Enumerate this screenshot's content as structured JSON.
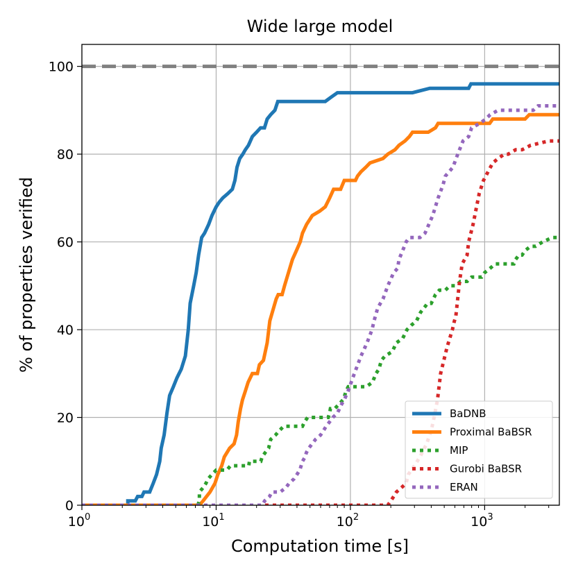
{
  "chart_data": {
    "type": "line",
    "title": "Wide large model",
    "xlabel": "Computation time [s]",
    "ylabel": "% of properties verified",
    "xscale": "log",
    "xlim": [
      1,
      3600
    ],
    "ylim": [
      0,
      105
    ],
    "grid": true,
    "legend_position": "lower-right",
    "x_ticks": [
      {
        "value": 1,
        "base": "10",
        "exp": "0"
      },
      {
        "value": 10,
        "base": "10",
        "exp": "1"
      },
      {
        "value": 100,
        "base": "10",
        "exp": "2"
      },
      {
        "value": 1000,
        "base": "10",
        "exp": "3"
      }
    ],
    "y_ticks": [
      {
        "value": 0,
        "label": "0"
      },
      {
        "value": 20,
        "label": "20"
      },
      {
        "value": 40,
        "label": "40"
      },
      {
        "value": 60,
        "label": "60"
      },
      {
        "value": 80,
        "label": "80"
      },
      {
        "value": 100,
        "label": "100"
      }
    ],
    "reference_line": {
      "y": 100,
      "color": "#808080",
      "style": "dashed"
    },
    "series": [
      {
        "name": "BaDNB",
        "color": "#1f77b4",
        "style": "solid",
        "points": [
          [
            1,
            0
          ],
          [
            2.2,
            0
          ],
          [
            2.2,
            1
          ],
          [
            2.5,
            1
          ],
          [
            2.6,
            2
          ],
          [
            2.8,
            2
          ],
          [
            2.9,
            3
          ],
          [
            3.2,
            3
          ],
          [
            3.4,
            5
          ],
          [
            3.6,
            7
          ],
          [
            3.8,
            10
          ],
          [
            3.9,
            13
          ],
          [
            4.1,
            16
          ],
          [
            4.3,
            21
          ],
          [
            4.5,
            25
          ],
          [
            4.8,
            27
          ],
          [
            5.1,
            29
          ],
          [
            5.5,
            31
          ],
          [
            5.9,
            34
          ],
          [
            6.2,
            40
          ],
          [
            6.4,
            46
          ],
          [
            6.8,
            50
          ],
          [
            7.1,
            53
          ],
          [
            7.4,
            57
          ],
          [
            7.8,
            61
          ],
          [
            8.2,
            62
          ],
          [
            8.8,
            64
          ],
          [
            9.3,
            66
          ],
          [
            10,
            68
          ],
          [
            10.5,
            69
          ],
          [
            11.2,
            70
          ],
          [
            12.2,
            71
          ],
          [
            13.2,
            72
          ],
          [
            13.8,
            74
          ],
          [
            14.3,
            77
          ],
          [
            15,
            79
          ],
          [
            15.8,
            80
          ],
          [
            16.5,
            81
          ],
          [
            17.4,
            82
          ],
          [
            18.6,
            84
          ],
          [
            20,
            85
          ],
          [
            21.4,
            86
          ],
          [
            22.9,
            86
          ],
          [
            24,
            88
          ],
          [
            25.5,
            89
          ],
          [
            27.4,
            90
          ],
          [
            28.8,
            92
          ],
          [
            65,
            92
          ],
          [
            72,
            93
          ],
          [
            80,
            94
          ],
          [
            290,
            94
          ],
          [
            390,
            95
          ],
          [
            760,
            95
          ],
          [
            790,
            96
          ],
          [
            3600,
            96
          ]
        ]
      },
      {
        "name": "Proximal BaBSR",
        "color": "#ff7f0e",
        "style": "solid",
        "points": [
          [
            1,
            0
          ],
          [
            7.5,
            0
          ],
          [
            8,
            1
          ],
          [
            9,
            3
          ],
          [
            9.8,
            5
          ],
          [
            10.3,
            7
          ],
          [
            11,
            9
          ],
          [
            11.5,
            11
          ],
          [
            12.6,
            13
          ],
          [
            13.6,
            14
          ],
          [
            14.2,
            16
          ],
          [
            14.6,
            19
          ],
          [
            15.2,
            22
          ],
          [
            15.7,
            24
          ],
          [
            16.5,
            26
          ],
          [
            17.3,
            28
          ],
          [
            18.6,
            30
          ],
          [
            20.3,
            30
          ],
          [
            21,
            32
          ],
          [
            22.5,
            33
          ],
          [
            24,
            37
          ],
          [
            25.1,
            42
          ],
          [
            26.8,
            45
          ],
          [
            28,
            47
          ],
          [
            29,
            48
          ],
          [
            31,
            48
          ],
          [
            32.3,
            50
          ],
          [
            34.6,
            53
          ],
          [
            37,
            56
          ],
          [
            39.6,
            58
          ],
          [
            42.3,
            60
          ],
          [
            44,
            62
          ],
          [
            47.2,
            64
          ],
          [
            52,
            66
          ],
          [
            59,
            67
          ],
          [
            65,
            68
          ],
          [
            70,
            70
          ],
          [
            75,
            72
          ],
          [
            84.5,
            72
          ],
          [
            90,
            74
          ],
          [
            109,
            74
          ],
          [
            113,
            75
          ],
          [
            120,
            76
          ],
          [
            130,
            77
          ],
          [
            140,
            78
          ],
          [
            175,
            79
          ],
          [
            190,
            80
          ],
          [
            215,
            81
          ],
          [
            230,
            82
          ],
          [
            255,
            83
          ],
          [
            275,
            84
          ],
          [
            290,
            85
          ],
          [
            380,
            85
          ],
          [
            430,
            86
          ],
          [
            450,
            87
          ],
          [
            1090,
            87
          ],
          [
            1150,
            88
          ],
          [
            2000,
            88
          ],
          [
            2150,
            89
          ],
          [
            3600,
            89
          ]
        ]
      },
      {
        "name": "MIP",
        "color": "#2ca02c",
        "style": "dotted",
        "points": [
          [
            7.3,
            0
          ],
          [
            7.5,
            1
          ],
          [
            7.5,
            3
          ],
          [
            8,
            4
          ],
          [
            8.4,
            5
          ],
          [
            8.7,
            6
          ],
          [
            9.3,
            7
          ],
          [
            10,
            8
          ],
          [
            12,
            8
          ],
          [
            12.8,
            9
          ],
          [
            17.5,
            9
          ],
          [
            17.7,
            10
          ],
          [
            21.5,
            10
          ],
          [
            22,
            11
          ],
          [
            23.2,
            12
          ],
          [
            24.6,
            13
          ],
          [
            25.5,
            15
          ],
          [
            27.7,
            16
          ],
          [
            29.6,
            17
          ],
          [
            31.8,
            18
          ],
          [
            44,
            18
          ],
          [
            45.5,
            19
          ],
          [
            48,
            20
          ],
          [
            68.3,
            20
          ],
          [
            70,
            21
          ],
          [
            71,
            22
          ],
          [
            76.4,
            22
          ],
          [
            82.2,
            23
          ],
          [
            88,
            24
          ],
          [
            90.7,
            25
          ],
          [
            92.8,
            26
          ],
          [
            96.3,
            27
          ],
          [
            131,
            27
          ],
          [
            146,
            28
          ],
          [
            155,
            30
          ],
          [
            163,
            31
          ],
          [
            170,
            33
          ],
          [
            181,
            34
          ],
          [
            205,
            35
          ],
          [
            220,
            37
          ],
          [
            245,
            38
          ],
          [
            264,
            40
          ],
          [
            284,
            41
          ],
          [
            311,
            42
          ],
          [
            334,
            44
          ],
          [
            376,
            46
          ],
          [
            400,
            46
          ],
          [
            430,
            48
          ],
          [
            460,
            49
          ],
          [
            510,
            49
          ],
          [
            550,
            50
          ],
          [
            610,
            50
          ],
          [
            660,
            51
          ],
          [
            740,
            51
          ],
          [
            800,
            52
          ],
          [
            950,
            52
          ],
          [
            1000,
            53
          ],
          [
            1100,
            54
          ],
          [
            1200,
            55
          ],
          [
            1650,
            55
          ],
          [
            1700,
            56
          ],
          [
            1800,
            57
          ],
          [
            1900,
            57
          ],
          [
            2000,
            58
          ],
          [
            2200,
            59
          ],
          [
            2400,
            59
          ],
          [
            2700,
            60
          ],
          [
            3200,
            61
          ],
          [
            3600,
            61
          ]
        ]
      },
      {
        "name": "Gurobi BaBSR",
        "color": "#d62728",
        "style": "dotted",
        "points": [
          [
            1,
            0
          ],
          [
            190,
            0
          ],
          [
            200,
            1
          ],
          [
            210,
            2
          ],
          [
            220,
            3
          ],
          [
            240,
            4
          ],
          [
            260,
            5
          ],
          [
            270,
            7
          ],
          [
            300,
            9
          ],
          [
            330,
            11
          ],
          [
            370,
            14
          ],
          [
            400,
            17
          ],
          [
            420,
            20
          ],
          [
            445,
            24
          ],
          [
            470,
            30
          ],
          [
            525,
            36
          ],
          [
            575,
            40
          ],
          [
            595,
            42
          ],
          [
            610,
            43
          ],
          [
            650,
            51
          ],
          [
            680,
            55
          ],
          [
            740,
            57
          ],
          [
            760,
            60
          ],
          [
            820,
            64
          ],
          [
            870,
            68
          ],
          [
            910,
            71
          ],
          [
            980,
            74
          ],
          [
            1060,
            76
          ],
          [
            1150,
            78
          ],
          [
            1260,
            79
          ],
          [
            1400,
            80
          ],
          [
            1500,
            80
          ],
          [
            1700,
            81
          ],
          [
            1900,
            81
          ],
          [
            2200,
            82
          ],
          [
            3000,
            83
          ],
          [
            3600,
            83
          ]
        ]
      },
      {
        "name": "ERAN",
        "color": "#9467bd",
        "style": "dotted",
        "points": [
          [
            1,
            0
          ],
          [
            22,
            0
          ],
          [
            23,
            1
          ],
          [
            25,
            2
          ],
          [
            26,
            3
          ],
          [
            30,
            3
          ],
          [
            33,
            4
          ],
          [
            35,
            5
          ],
          [
            38,
            6
          ],
          [
            40,
            7
          ],
          [
            42,
            8
          ],
          [
            44,
            10
          ],
          [
            46,
            11
          ],
          [
            47,
            12
          ],
          [
            49,
            13
          ],
          [
            55,
            15
          ],
          [
            60,
            16
          ],
          [
            63,
            17
          ],
          [
            66,
            18
          ],
          [
            70,
            19
          ],
          [
            74,
            20
          ],
          [
            80,
            21
          ],
          [
            86,
            23
          ],
          [
            90,
            24
          ],
          [
            96,
            26
          ],
          [
            107,
            30
          ],
          [
            120,
            34
          ],
          [
            133,
            37
          ],
          [
            145,
            40
          ],
          [
            150,
            42
          ],
          [
            160,
            45
          ],
          [
            175,
            47
          ],
          [
            190,
            50
          ],
          [
            210,
            53
          ],
          [
            225,
            54
          ],
          [
            230,
            56
          ],
          [
            245,
            58
          ],
          [
            260,
            60
          ],
          [
            275,
            61
          ],
          [
            330,
            61
          ],
          [
            360,
            62
          ],
          [
            410,
            66
          ],
          [
            450,
            70
          ],
          [
            490,
            73
          ],
          [
            510,
            75
          ],
          [
            580,
            77
          ],
          [
            630,
            80
          ],
          [
            690,
            83
          ],
          [
            760,
            84
          ],
          [
            800,
            86
          ],
          [
            920,
            87
          ],
          [
            1020,
            88
          ],
          [
            1100,
            89
          ],
          [
            1260,
            90
          ],
          [
            2300,
            90
          ],
          [
            2500,
            91
          ],
          [
            3400,
            91
          ],
          [
            3600,
            91
          ]
        ]
      }
    ]
  }
}
